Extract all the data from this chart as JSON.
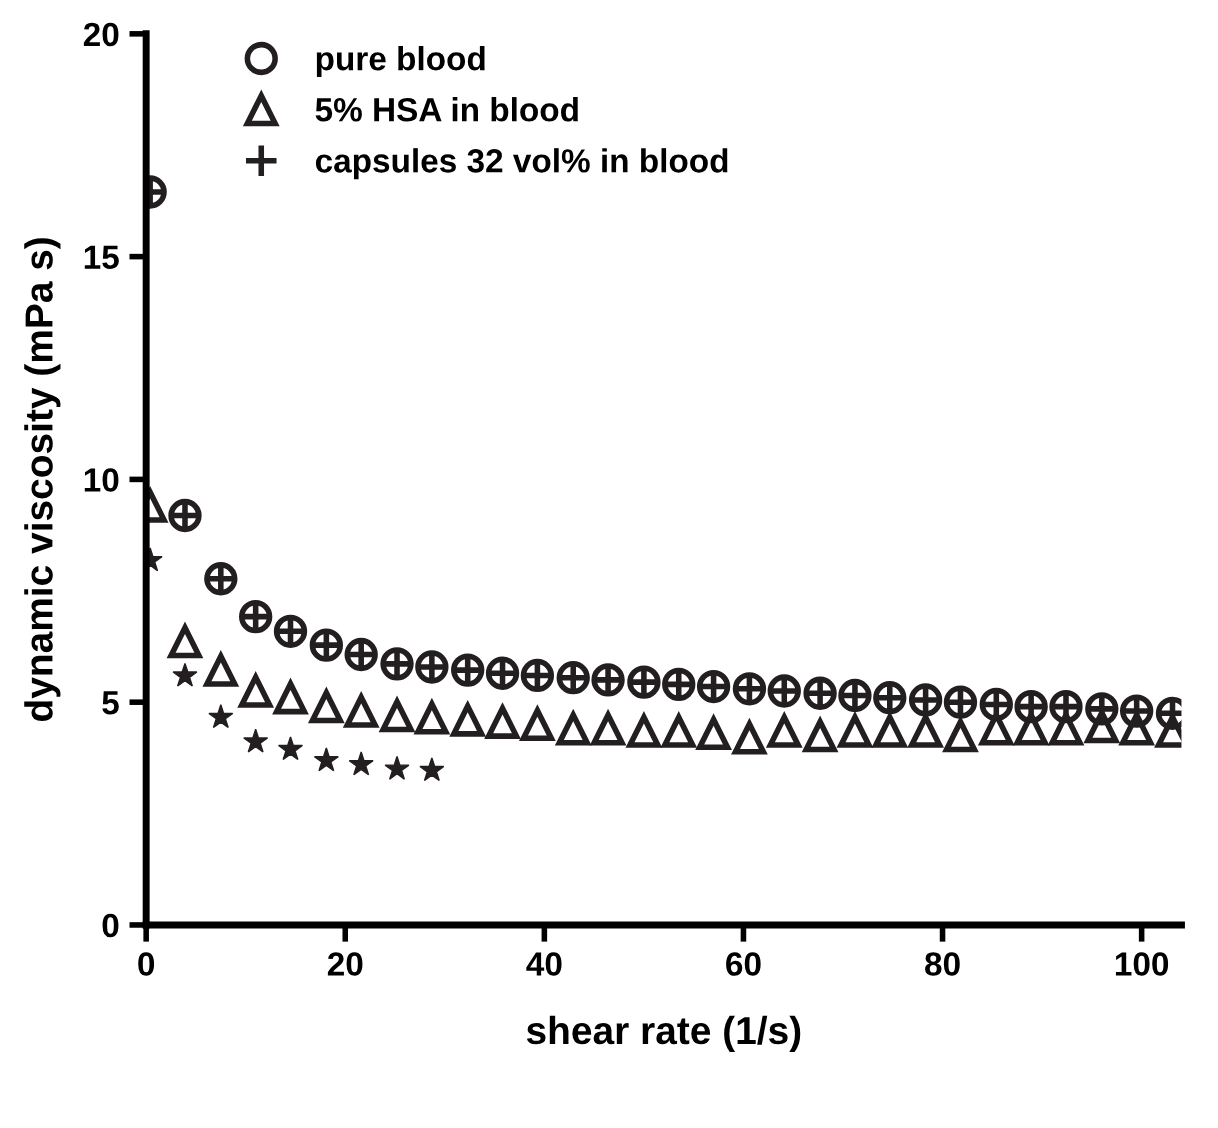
{
  "chart_data": {
    "type": "scatter",
    "xlabel": "shear rate (1/s)",
    "ylabel": "dynamic viscosity (mPa s)",
    "x": [
      0.4,
      3.9,
      7.5,
      11.0,
      14.5,
      18.1,
      21.6,
      25.2,
      28.7,
      32.3,
      35.8,
      39.3,
      42.9,
      46.4,
      50.0,
      53.5,
      57.0,
      60.6,
      64.1,
      67.7,
      71.2,
      74.7,
      78.3,
      81.8,
      85.4,
      88.9,
      92.4,
      96.0,
      99.5,
      103.1
    ],
    "series": [
      {
        "name": "pure blood",
        "color": "#231f20",
        "marker": "circle",
        "values": [
          16.45,
          9.19,
          7.77,
          6.92,
          6.59,
          6.28,
          6.07,
          5.86,
          5.79,
          5.72,
          5.65,
          5.6,
          5.55,
          5.5,
          5.45,
          5.4,
          5.35,
          5.3,
          5.25,
          5.2,
          5.15,
          5.1,
          5.05,
          5.0,
          4.95,
          4.9,
          4.9,
          4.85,
          4.8,
          4.75
        ]
      },
      {
        "name": "5% HSA in blood",
        "color": "#231f20",
        "marker": "triangle",
        "values": [
          9.4,
          6.36,
          5.72,
          5.25,
          5.1,
          4.9,
          4.8,
          4.7,
          4.65,
          4.6,
          4.55,
          4.5,
          4.4,
          4.4,
          4.35,
          4.35,
          4.3,
          4.2,
          4.35,
          4.25,
          4.35,
          4.35,
          4.35,
          4.25,
          4.4,
          4.4,
          4.4,
          4.45,
          4.4,
          4.35
        ]
      },
      {
        "name": "capsules 32 vol% in blood",
        "color": "#231f20",
        "marker": "cross",
        "values": [
          16.45,
          9.19,
          7.77,
          6.92,
          6.59,
          6.28,
          6.07,
          5.86,
          5.79,
          5.72,
          5.65,
          5.6,
          5.55,
          5.5,
          5.45,
          5.4,
          5.35,
          5.3,
          5.25,
          5.2,
          5.15,
          5.1,
          5.05,
          5.0,
          4.95,
          4.9,
          4.9,
          4.85,
          4.8,
          4.75
        ]
      },
      {
        "color": "#231f20",
        "marker": "star",
        "x": [
          0.4,
          3.9,
          7.5,
          11.0,
          14.5,
          18.1,
          21.6,
          25.2,
          28.7
        ],
        "values": [
          8.18,
          5.59,
          4.66,
          4.11,
          3.94,
          3.69,
          3.6,
          3.5,
          3.47
        ]
      }
    ],
    "xlim": [
      0,
      104
    ],
    "xticks": [
      0,
      20,
      40,
      60,
      80,
      100
    ],
    "ylim": [
      0,
      20
    ],
    "yticks": [
      0,
      5,
      10,
      15,
      20
    ],
    "legend": "top left",
    "grid": false
  }
}
